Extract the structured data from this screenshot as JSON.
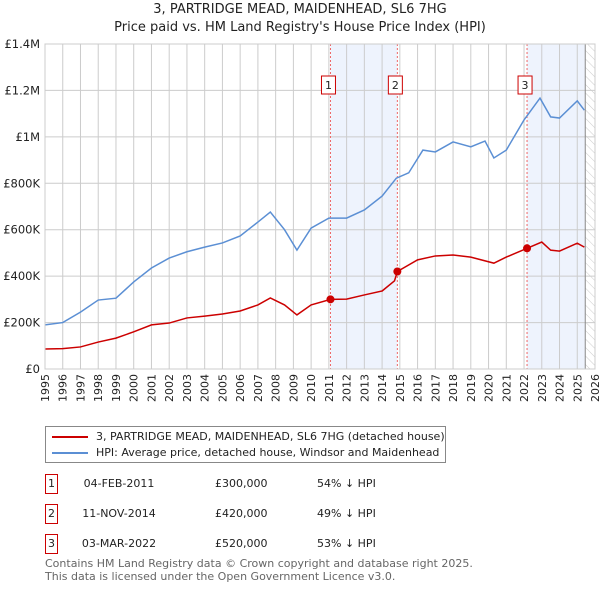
{
  "title": "3, PARTRIDGE MEAD, MAIDENHEAD, SL6 7HG",
  "subtitle": "Price paid vs. HM Land Registry's House Price Index (HPI)",
  "chart_data": {
    "type": "line",
    "xlim": [
      1995,
      2026
    ],
    "ylim": [
      0,
      1400000
    ],
    "yticks": [
      {
        "v": 0,
        "l": "£0"
      },
      {
        "v": 200000,
        "l": "£200K"
      },
      {
        "v": 400000,
        "l": "£400K"
      },
      {
        "v": 600000,
        "l": "£600K"
      },
      {
        "v": 800000,
        "l": "£800K"
      },
      {
        "v": 1000000,
        "l": "£1M"
      },
      {
        "v": 1200000,
        "l": "£1.2M"
      },
      {
        "v": 1400000,
        "l": "£1.4M"
      }
    ],
    "xticks": [
      "1995",
      "1996",
      "1997",
      "1998",
      "1999",
      "2000",
      "2001",
      "2002",
      "2003",
      "2004",
      "2005",
      "2006",
      "2007",
      "2008",
      "2009",
      "2010",
      "2011",
      "2012",
      "2013",
      "2014",
      "2015",
      "2016",
      "2017",
      "2018",
      "2019",
      "2020",
      "2021",
      "2022",
      "2023",
      "2024",
      "2025",
      "2026"
    ],
    "grid": true,
    "series": [
      {
        "name": "3, PARTRIDGE MEAD, MAIDENHEAD, SL6 7HG (detached house)",
        "color": "#cc0000",
        "x": [
          1995,
          1996,
          1997,
          1998,
          1999,
          2000,
          2001,
          2002,
          2003,
          2004,
          2005,
          2006,
          2007,
          2007.7,
          2008.5,
          2009.2,
          2010,
          2011.09,
          2012,
          2013,
          2014,
          2014.7,
          2014.86,
          2016,
          2017,
          2018,
          2019,
          2020.3,
          2021,
          2022.17,
          2023,
          2023.5,
          2024,
          2025,
          2025.4
        ],
        "y": [
          86000,
          88000,
          95000,
          116000,
          133000,
          160000,
          190000,
          198000,
          220000,
          228000,
          237000,
          250000,
          276000,
          306000,
          276000,
          233000,
          276000,
          300000,
          301000,
          319000,
          336000,
          380000,
          420000,
          470000,
          487000,
          491000,
          482000,
          456000,
          482000,
          520000,
          547000,
          512000,
          508000,
          542000,
          525000
        ]
      },
      {
        "name": "HPI: Average price, detached house, Windsor and Maidenhead",
        "color": "#5b8fd4",
        "x": [
          1995,
          1996,
          1997,
          1998,
          1999,
          2000,
          2001,
          2002,
          2003,
          2004,
          2005,
          2006,
          2007,
          2007.7,
          2008.5,
          2009.2,
          2010,
          2011,
          2012,
          2013,
          2014,
          2014.8,
          2015.5,
          2016.3,
          2017,
          2018,
          2019,
          2019.8,
          2020.3,
          2021,
          2022,
          2022.9,
          2023.5,
          2024,
          2025,
          2025.4
        ],
        "y": [
          190000,
          200000,
          245000,
          297000,
          305000,
          375000,
          435000,
          478000,
          505000,
          525000,
          543000,
          573000,
          633000,
          676000,
          600000,
          512000,
          607000,
          650000,
          650000,
          685000,
          745000,
          822000,
          845000,
          943000,
          935000,
          978000,
          957000,
          982000,
          909000,
          943000,
          1073000,
          1167000,
          1086000,
          1081000,
          1155000,
          1115000
        ]
      }
    ],
    "sales": [
      {
        "n": "1",
        "x": 2011.09,
        "y": 300000,
        "date": "04-FEB-2011",
        "price": "£300,000",
        "hpi": "54% ↓ HPI"
      },
      {
        "n": "2",
        "x": 2014.86,
        "y": 420000,
        "date": "11-NOV-2014",
        "price": "£420,000",
        "hpi": "49% ↓ HPI"
      },
      {
        "n": "3",
        "x": 2022.17,
        "y": 520000,
        "date": "03-MAR-2022",
        "price": "£520,000",
        "hpi": "53% ↓ HPI"
      }
    ],
    "shaded": [
      [
        2011.09,
        2014.86
      ],
      [
        2022.17,
        2025.45
      ]
    ],
    "forecast_from": 2025.45,
    "legend_placement": "below"
  },
  "footer1": "Contains HM Land Registry data © Crown copyright and database right 2025.",
  "footer2": "This data is licensed under the Open Government Licence v3.0."
}
